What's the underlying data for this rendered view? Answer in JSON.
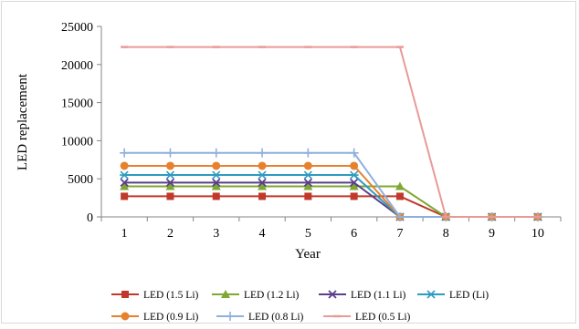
{
  "chart_data": {
    "type": "line",
    "xlabel": "Year",
    "ylabel": "LED replacement",
    "x": [
      1,
      2,
      3,
      4,
      5,
      6,
      7,
      8,
      9,
      10
    ],
    "ylim": [
      0,
      25000
    ],
    "yticks": [
      0,
      5000,
      10000,
      15000,
      20000,
      25000
    ],
    "grid": false,
    "legend_position": "bottom",
    "series": [
      {
        "name": "LED (1.5 Li)",
        "color": "#c0392b",
        "marker": "square",
        "values": [
          2700,
          2700,
          2700,
          2700,
          2700,
          2700,
          2700,
          0,
          0,
          0
        ]
      },
      {
        "name": "LED (1.2 Li)",
        "color": "#7fa832",
        "marker": "triangle",
        "values": [
          4000,
          4000,
          4000,
          4000,
          4000,
          4000,
          4000,
          0,
          0,
          0
        ]
      },
      {
        "name": "LED (1.1 Li)",
        "color": "#5b3f8a",
        "marker": "x",
        "values": [
          4500,
          4500,
          4500,
          4500,
          4500,
          4500,
          0,
          0,
          0,
          0
        ]
      },
      {
        "name": "LED (Li)",
        "color": "#2e9bbf",
        "marker": "star",
        "values": [
          5500,
          5500,
          5500,
          5500,
          5500,
          5500,
          0,
          0,
          0,
          0
        ]
      },
      {
        "name": "LED (0.9 Li)",
        "color": "#e6822e",
        "marker": "circle",
        "values": [
          6700,
          6700,
          6700,
          6700,
          6700,
          6700,
          0,
          0,
          0,
          0
        ]
      },
      {
        "name": "LED (0.8 Li)",
        "color": "#8fb0dc",
        "marker": "plus",
        "values": [
          8400,
          8400,
          8400,
          8400,
          8400,
          8400,
          0,
          0,
          0,
          0
        ]
      },
      {
        "name": "LED (0.5 Li)",
        "color": "#e89a98",
        "marker": "dash",
        "values": [
          22300,
          22300,
          22300,
          22300,
          22300,
          22300,
          22300,
          0,
          0,
          0
        ]
      }
    ]
  }
}
